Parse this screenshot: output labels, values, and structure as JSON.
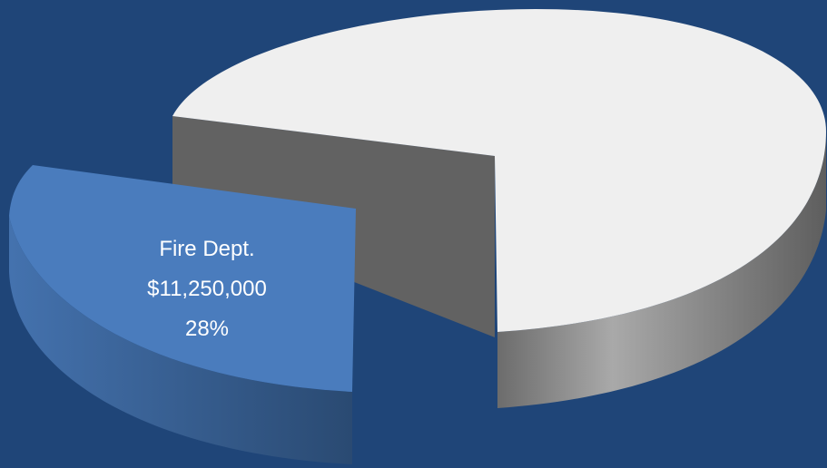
{
  "chart_data": {
    "type": "pie",
    "style": "3d-exploded",
    "slices": [
      {
        "name": "Fire Dept.",
        "value": 11250000,
        "value_label": "$11,250,000",
        "percent_label": "28%",
        "percent": 28,
        "color": "#4a7cbd",
        "side_color": "#3d6aa6",
        "exploded": true
      },
      {
        "name": "",
        "percent": 72,
        "color": "#efefef",
        "side_color": "#8a8a8a",
        "exploded": false
      }
    ]
  },
  "colors": {
    "background": "#1f4578",
    "label_text": "#ffffff"
  }
}
